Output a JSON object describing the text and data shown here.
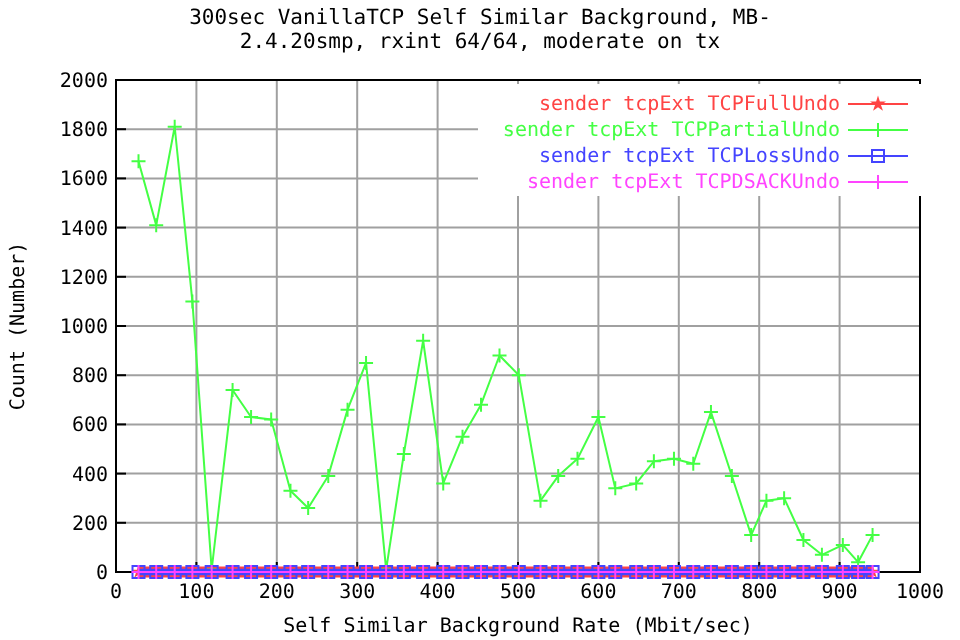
{
  "chart_data": {
    "type": "line",
    "title": "300sec  VanillaTCP  Self Similar Background, MB-",
    "subtitle": "2.4.20smp, rxint 64/64, moderate on tx",
    "xlabel": "Self Similar Background Rate (Mbit/sec)",
    "ylabel": "Count (Number)",
    "x": [
      28,
      50,
      73,
      95,
      119,
      145,
      168,
      193,
      217,
      239,
      264,
      288,
      311,
      336,
      358,
      382,
      407,
      431,
      454,
      477,
      501,
      528,
      550,
      574,
      600,
      621,
      647,
      669,
      694,
      718,
      740,
      766,
      790,
      809,
      831,
      855,
      878,
      904,
      923,
      941
    ],
    "series": [
      {
        "name": "sender tcpExt TCPFullUndo",
        "color": "#ff4444",
        "marker": "star",
        "values": [
          0,
          0,
          0,
          0,
          0,
          0,
          0,
          0,
          0,
          0,
          0,
          0,
          0,
          0,
          0,
          0,
          0,
          0,
          0,
          0,
          0,
          0,
          0,
          0,
          0,
          0,
          0,
          0,
          0,
          0,
          0,
          0,
          0,
          0,
          0,
          0,
          0,
          0,
          0,
          0
        ]
      },
      {
        "name": "sender tcpExt TCPPartialUndo",
        "color": "#44ff44",
        "marker": "cross",
        "values": [
          1670,
          1410,
          1810,
          1100,
          10,
          740,
          630,
          620,
          330,
          260,
          390,
          660,
          850,
          10,
          480,
          940,
          360,
          550,
          680,
          880,
          800,
          290,
          390,
          460,
          630,
          340,
          360,
          450,
          460,
          440,
          650,
          390,
          150,
          290,
          300,
          130,
          70,
          110,
          40,
          150
        ]
      },
      {
        "name": "sender tcpExt TCPLossUndo",
        "color": "#4444ff",
        "marker": "square",
        "values": [
          0,
          0,
          0,
          0,
          0,
          0,
          0,
          0,
          0,
          0,
          0,
          0,
          0,
          0,
          0,
          0,
          0,
          0,
          0,
          0,
          0,
          0,
          0,
          0,
          0,
          0,
          0,
          0,
          0,
          0,
          0,
          0,
          0,
          0,
          0,
          0,
          0,
          0,
          0,
          0
        ]
      },
      {
        "name": "sender tcpExt TCPDSACKUndo",
        "color": "#ff44ff",
        "marker": "cross",
        "values": [
          0,
          0,
          0,
          0,
          0,
          0,
          0,
          0,
          0,
          0,
          0,
          0,
          0,
          0,
          0,
          0,
          0,
          0,
          0,
          0,
          0,
          0,
          0,
          0,
          0,
          0,
          0,
          0,
          0,
          0,
          0,
          0,
          0,
          0,
          0,
          0,
          0,
          0,
          0,
          0
        ]
      }
    ],
    "xlim": [
      0,
      1000
    ],
    "xticks": [
      0,
      100,
      200,
      300,
      400,
      500,
      600,
      700,
      800,
      900,
      1000
    ],
    "ylim": [
      0,
      2000
    ],
    "yticks": [
      0,
      200,
      400,
      600,
      800,
      1000,
      1200,
      1400,
      1600,
      1800,
      2000
    ],
    "grid": true,
    "legend": "top right",
    "line_style": "solid"
  }
}
